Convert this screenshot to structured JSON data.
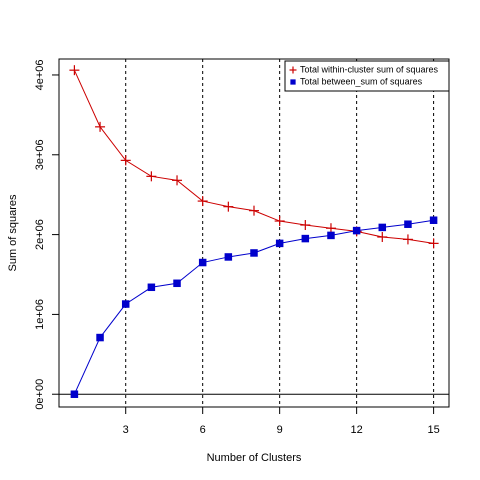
{
  "chart_data": {
    "type": "line",
    "xlabel": "Number of Clusters",
    "ylabel": "Sum of squares",
    "xlim": [
      0.4,
      15.6
    ],
    "ylim": [
      -160000,
      4200000
    ],
    "x_ticks": [
      3,
      6,
      9,
      12,
      15
    ],
    "x_tick_labels": [
      "3",
      "6",
      "9",
      "12",
      "15"
    ],
    "y_ticks": [
      0,
      1000000,
      2000000,
      3000000,
      4000000
    ],
    "y_tick_labels": [
      "0e+00",
      "1e+06",
      "2e+06",
      "3e+06",
      "4e+06"
    ],
    "vertical_reference_lines": [
      3,
      6,
      9,
      12,
      15
    ],
    "horizontal_reference_line": 0,
    "legend_position": "top-right",
    "x": [
      1,
      2,
      3,
      4,
      5,
      6,
      7,
      8,
      9,
      10,
      11,
      12,
      13,
      14,
      15
    ],
    "series": [
      {
        "name": "Total within-cluster sum of squares",
        "color": "#cc0000",
        "marker": "plus",
        "values": [
          4060000,
          3350000,
          2930000,
          2730000,
          2680000,
          2420000,
          2350000,
          2300000,
          2170000,
          2120000,
          2080000,
          2040000,
          1970000,
          1940000,
          1890000
        ]
      },
      {
        "name": "Total between_sum of squares",
        "color": "#0000cc",
        "marker": "square",
        "values": [
          0,
          710000,
          1130000,
          1340000,
          1390000,
          1650000,
          1720000,
          1770000,
          1890000,
          1950000,
          1990000,
          2050000,
          2090000,
          2130000,
          2180000
        ]
      }
    ]
  }
}
